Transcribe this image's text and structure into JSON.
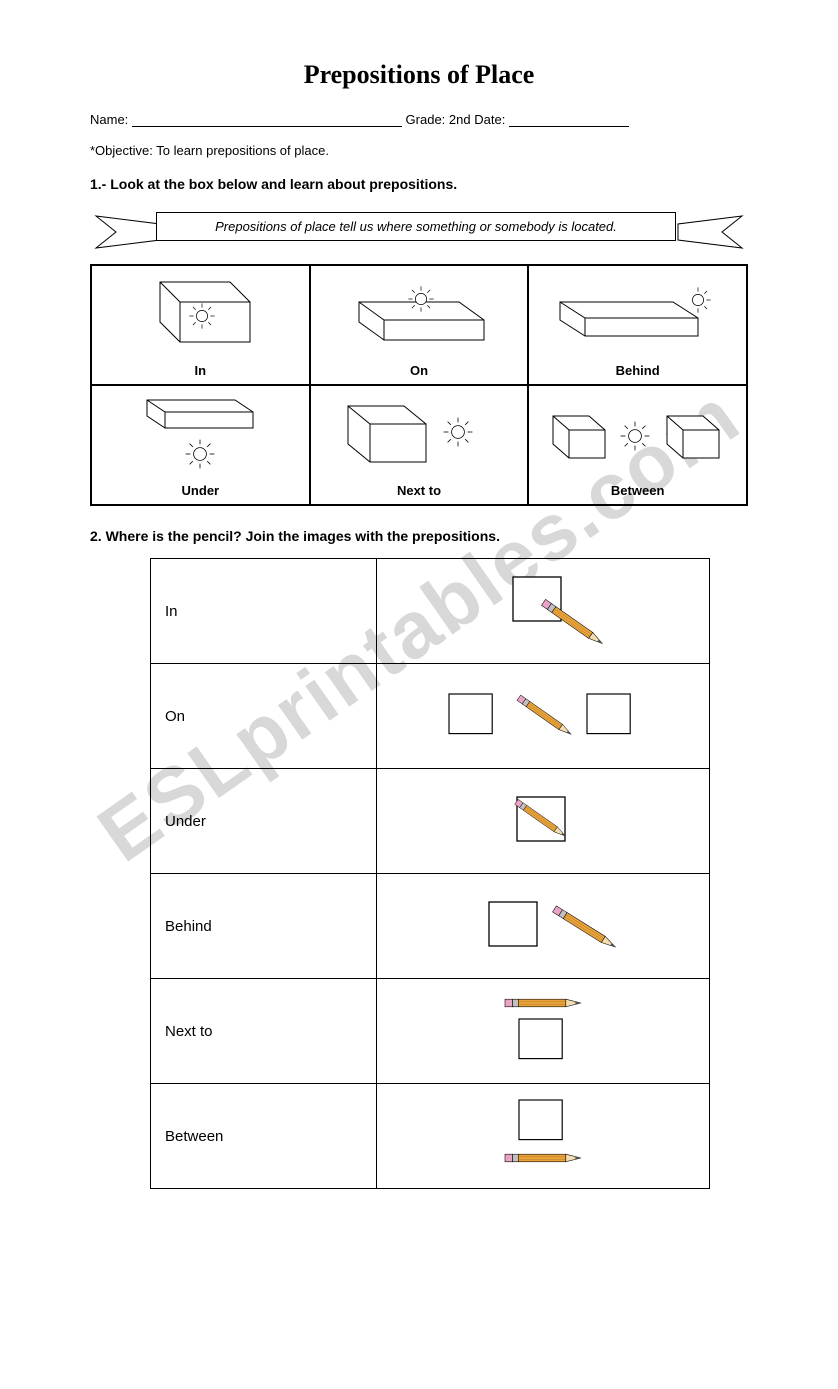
{
  "title": "Prepositions of Place",
  "info": {
    "name_label": "Name:",
    "grade_label": "Grade:",
    "grade_value": "2nd",
    "date_label": "Date:"
  },
  "objective": "*Objective: To learn prepositions of place.",
  "instruction1": "1.- Look at the box below and learn about prepositions.",
  "banner_text": "Prepositions of place tell us where something or somebody is located.",
  "prep_grid": {
    "cells": [
      {
        "label": "In"
      },
      {
        "label": "On"
      },
      {
        "label": "Behind"
      },
      {
        "label": "Under"
      },
      {
        "label": "Next to"
      },
      {
        "label": "Between"
      }
    ]
  },
  "instruction2": "2. Where is the pencil? Join the images with the prepositions.",
  "match": {
    "rows": [
      {
        "label": "In",
        "img": "behind"
      },
      {
        "label": "On",
        "img": "between"
      },
      {
        "label": "Under",
        "img": "in"
      },
      {
        "label": "Behind",
        "img": "nextto"
      },
      {
        "label": "Next to",
        "img": "on"
      },
      {
        "label": "Between",
        "img": "under"
      }
    ]
  },
  "style": {
    "pencil_body": "#e8a33c",
    "pencil_ferrule": "#c0c0c0",
    "pencil_eraser": "#e9a3c4",
    "pencil_wood": "#f3dcae",
    "pencil_lead": "#555555",
    "box_stroke": "#000000",
    "box_fill": "#ffffff",
    "watermark_text": "ESLprintables.com",
    "watermark_color": "#d8d8d8"
  }
}
